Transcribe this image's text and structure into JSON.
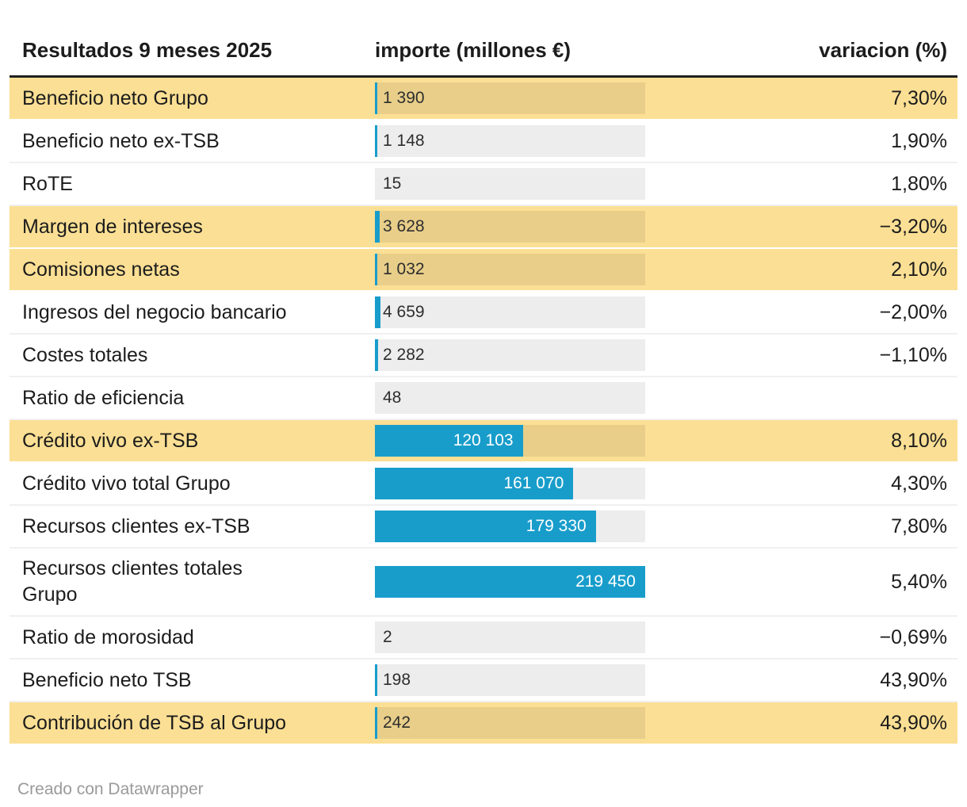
{
  "header": {
    "title": "Resultados 9 meses 2025",
    "importe_label": "importe (millones €)",
    "variacion_label": "variacion (%)"
  },
  "footer": {
    "credit": "Creado con Datawrapper"
  },
  "colors": {
    "accent_bar": "#189DCB",
    "row_highlight": "#FBDF94",
    "bar_track": "#EDEDED",
    "bar_track_highlight": "#E8CE89",
    "header_rule": "#1F1F1F",
    "text": "#1C1C1C",
    "bar_label_inside": "#FFFFFF",
    "bar_label_outside": "#2E2E2E",
    "footer_text": "#9A9A9A",
    "row_divider": "#F0F0F0"
  },
  "chart_data": {
    "type": "table",
    "title": "Resultados 9 meses 2025",
    "columns": [
      "Resultados 9 meses 2025",
      "importe (millones €)",
      "variacion (%)"
    ],
    "bar_axis_max": 219450,
    "legend_position": "none",
    "rows": [
      {
        "label": "Beneficio neto Grupo",
        "value": 1390,
        "value_label": "1 390",
        "variation": "7,30%",
        "highlight": true,
        "tall": false
      },
      {
        "label": "Beneficio neto ex-TSB",
        "value": 1148,
        "value_label": "1 148",
        "variation": "1,90%",
        "highlight": false,
        "tall": false
      },
      {
        "label": "RoTE",
        "value": 15,
        "value_label": "15",
        "variation": "1,80%",
        "highlight": false,
        "tall": false
      },
      {
        "label": "Margen de intereses",
        "value": 3628,
        "value_label": "3 628",
        "variation": "−3,20%",
        "highlight": true,
        "tall": false
      },
      {
        "label": "Comisiones netas",
        "value": 1032,
        "value_label": "1 032",
        "variation": "2,10%",
        "highlight": true,
        "tall": false
      },
      {
        "label": "Ingresos del negocio bancario",
        "value": 4659,
        "value_label": "4 659",
        "variation": "−2,00%",
        "highlight": false,
        "tall": false
      },
      {
        "label": "Costes totales",
        "value": 2282,
        "value_label": "2 282",
        "variation": "−1,10%",
        "highlight": false,
        "tall": false
      },
      {
        "label": "Ratio de eficiencia",
        "value": 48,
        "value_label": "48",
        "variation": "",
        "highlight": false,
        "tall": false
      },
      {
        "label": "Crédito vivo ex-TSB",
        "value": 120103,
        "value_label": "120 103",
        "variation": "8,10%",
        "highlight": true,
        "tall": false
      },
      {
        "label": "Crédito vivo total Grupo",
        "value": 161070,
        "value_label": "161 070",
        "variation": "4,30%",
        "highlight": false,
        "tall": false
      },
      {
        "label": "Recursos clientes ex-TSB",
        "value": 179330,
        "value_label": "179 330",
        "variation": "7,80%",
        "highlight": false,
        "tall": false
      },
      {
        "label": "Recursos clientes totales\nGrupo",
        "value": 219450,
        "value_label": "219 450",
        "variation": "5,40%",
        "highlight": false,
        "tall": true
      },
      {
        "label": "Ratio de morosidad",
        "value": 2,
        "value_label": "2",
        "variation": "−0,69%",
        "highlight": false,
        "tall": false
      },
      {
        "label": "Beneficio neto TSB",
        "value": 198,
        "value_label": "198",
        "variation": "43,90%",
        "highlight": false,
        "tall": false
      },
      {
        "label": "Contribución de TSB al Grupo",
        "value": 242,
        "value_label": "242",
        "variation": "43,90%",
        "highlight": true,
        "tall": false
      }
    ]
  }
}
